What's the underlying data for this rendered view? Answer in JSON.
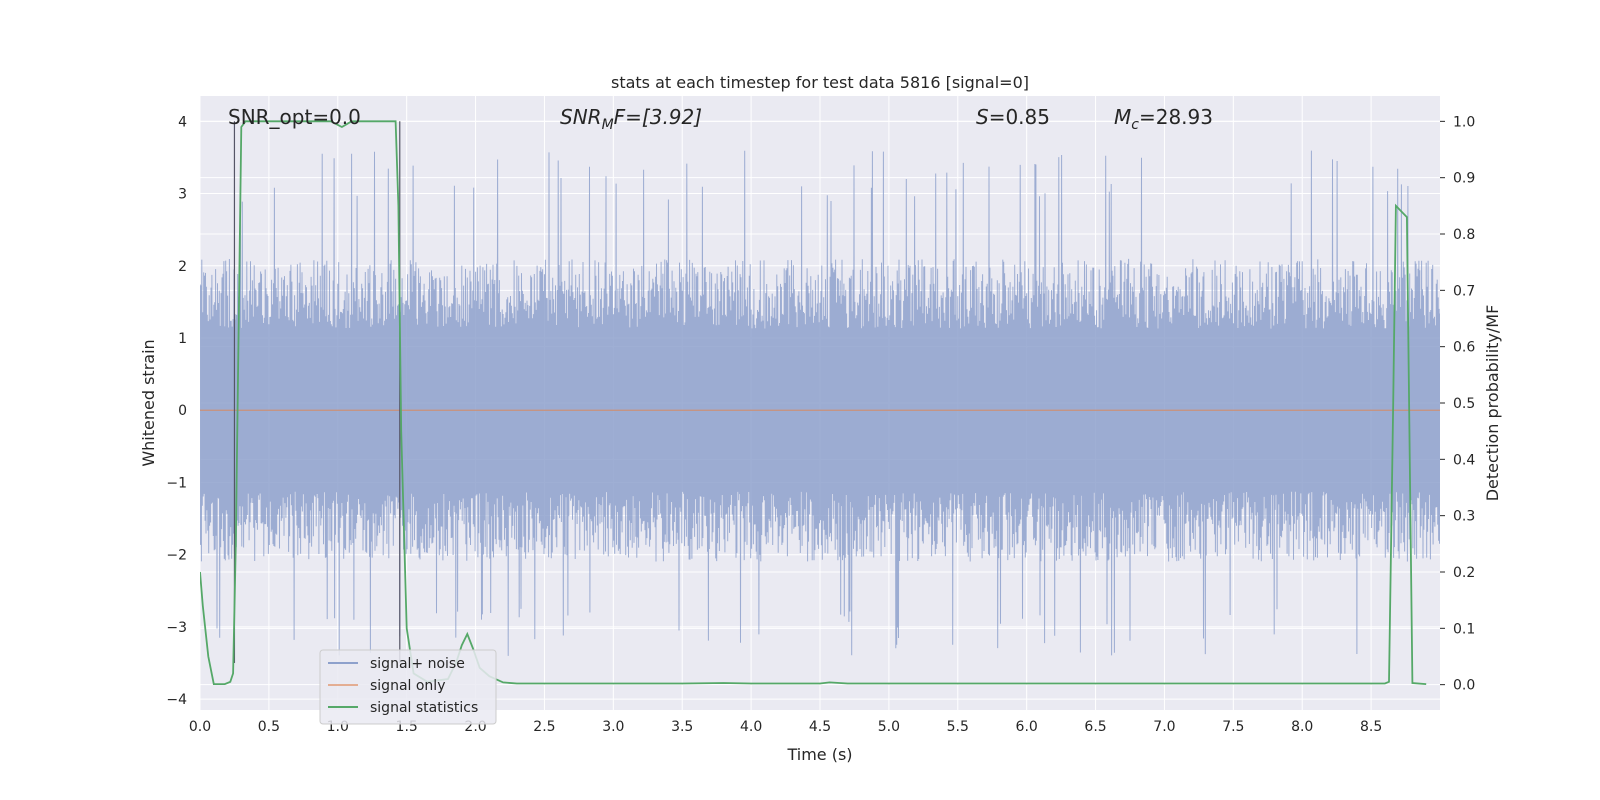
{
  "chart_data": {
    "type": "line",
    "title": "stats at each timestep for test data 5816 [signal=0]",
    "xlabel": "Time (s)",
    "ylabel": "Whitened strain",
    "ylabel_right": "Detection probability/MF",
    "xlim": [
      0.0,
      9.0
    ],
    "ylim": [
      -4.15,
      4.35
    ],
    "ylim_right": [
      -0.045,
      1.045
    ],
    "x_ticks": [
      "0.0",
      "0.5",
      "1.0",
      "1.5",
      "2.0",
      "2.5",
      "3.0",
      "3.5",
      "4.0",
      "4.5",
      "5.0",
      "5.5",
      "6.0",
      "6.5",
      "7.0",
      "7.5",
      "8.0",
      "8.5"
    ],
    "y_ticks": [
      "4",
      "3",
      "2",
      "1",
      "0",
      "−1",
      "−2",
      "−3",
      "−4"
    ],
    "y_ticks_right": [
      "1.0",
      "0.9",
      "0.8",
      "0.7",
      "0.6",
      "0.5",
      "0.4",
      "0.3",
      "0.2",
      "0.1",
      "0.0"
    ],
    "grid": true,
    "legend_placement": "lower-left",
    "annotations": {
      "snr_opt": "SNR_opt=0.0",
      "snr_mf_sym": "SNR",
      "snr_mf_sub": "M",
      "snr_mf_rest": "F=[3.92]",
      "s_sym": "S",
      "s_rest": "=0.85",
      "mc_sym": "M",
      "mc_sub": "c",
      "mc_rest": "=28.93"
    },
    "vlines_x": [
      0.25,
      1.45
    ],
    "series": [
      {
        "name": "signal+ noise",
        "color": "#8ea1cc",
        "axis": "left",
        "amplitude_envelope": {
          "typical_max": 2.6,
          "typical_min": -2.6,
          "peak_max": 4.0,
          "peak_min": -3.8
        },
        "sample_rate_hz": 2048
      },
      {
        "name": "signal only",
        "color": "#dd8452",
        "axis": "left",
        "constant_value": 0.0
      },
      {
        "name": "signal statistics",
        "color": "#55a868",
        "axis": "right",
        "x": [
          0.0,
          0.02,
          0.06,
          0.1,
          0.18,
          0.22,
          0.24,
          0.26,
          0.3,
          0.33,
          0.5,
          0.8,
          0.95,
          1.03,
          1.1,
          1.3,
          1.42,
          1.44,
          1.46,
          1.5,
          1.55,
          1.65,
          1.8,
          1.86,
          1.9,
          1.94,
          1.98,
          2.03,
          2.1,
          2.2,
          2.3,
          2.5,
          3.0,
          3.5,
          3.8,
          4.0,
          4.5,
          4.57,
          4.7,
          5.0,
          6.0,
          7.0,
          8.0,
          8.5,
          8.6,
          8.63,
          8.66,
          8.68,
          8.72,
          8.76,
          8.8,
          8.9
        ],
        "values": [
          0.2,
          0.14,
          0.05,
          0.001,
          0.001,
          0.005,
          0.02,
          0.25,
          0.99,
          1.0,
          1.0,
          1.0,
          1.0,
          0.99,
          1.0,
          1.0,
          1.0,
          0.85,
          0.45,
          0.1,
          0.02,
          0.005,
          0.01,
          0.04,
          0.07,
          0.09,
          0.065,
          0.03,
          0.015,
          0.004,
          0.002,
          0.002,
          0.002,
          0.002,
          0.003,
          0.002,
          0.002,
          0.004,
          0.002,
          0.002,
          0.002,
          0.002,
          0.002,
          0.002,
          0.002,
          0.005,
          0.5,
          0.85,
          0.84,
          0.83,
          0.003,
          0.001
        ]
      }
    ]
  }
}
